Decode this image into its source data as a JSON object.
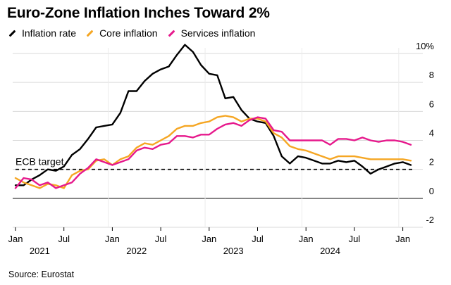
{
  "chart_data": {
    "type": "line",
    "title": "Euro-Zone Inflation Inches Toward 2%",
    "source": "Source: Eurostat",
    "annotation": "ECB target",
    "reference_line": {
      "value": 2,
      "label": "ECB target",
      "style": "dashed"
    },
    "ylim": [
      -2,
      10
    ],
    "yticks": [
      {
        "value": -2,
        "label": "-2"
      },
      {
        "value": 0,
        "label": "0"
      },
      {
        "value": 2,
        "label": "2"
      },
      {
        "value": 4,
        "label": "4"
      },
      {
        "value": 6,
        "label": "6"
      },
      {
        "value": 8,
        "label": "8"
      },
      {
        "value": 10,
        "label": "10%"
      }
    ],
    "xticks": [
      {
        "index": 0,
        "label": "Jan"
      },
      {
        "index": 6,
        "label": "Jul"
      },
      {
        "index": 12,
        "label": "Jan"
      },
      {
        "index": 18,
        "label": "Jul"
      },
      {
        "index": 24,
        "label": "Jan"
      },
      {
        "index": 30,
        "label": "Jul"
      },
      {
        "index": 36,
        "label": "Jan"
      },
      {
        "index": 42,
        "label": "Jul"
      },
      {
        "index": 48,
        "label": "Jan"
      }
    ],
    "year_labels": [
      {
        "center": 3,
        "label": "2021"
      },
      {
        "center": 15,
        "label": "2022"
      },
      {
        "center": 27,
        "label": "2023"
      },
      {
        "center": 39,
        "label": "2024"
      }
    ],
    "year_separators": [
      12,
      24,
      36,
      48
    ],
    "months": [
      "2021-01",
      "2021-02",
      "2021-03",
      "2021-04",
      "2021-05",
      "2021-06",
      "2021-07",
      "2021-08",
      "2021-09",
      "2021-10",
      "2021-11",
      "2021-12",
      "2022-01",
      "2022-02",
      "2022-03",
      "2022-04",
      "2022-05",
      "2022-06",
      "2022-07",
      "2022-08",
      "2022-09",
      "2022-10",
      "2022-11",
      "2022-12",
      "2023-01",
      "2023-02",
      "2023-03",
      "2023-04",
      "2023-05",
      "2023-06",
      "2023-07",
      "2023-08",
      "2023-09",
      "2023-10",
      "2023-11",
      "2023-12",
      "2024-01",
      "2024-02",
      "2024-03",
      "2024-04",
      "2024-05",
      "2024-06",
      "2024-07",
      "2024-08",
      "2024-09",
      "2024-10",
      "2024-11",
      "2024-12",
      "2025-01",
      "2025-02"
    ],
    "series": [
      {
        "name": "Inflation rate",
        "color": "#000000",
        "values": [
          0.9,
          0.9,
          1.3,
          1.6,
          2.0,
          1.9,
          2.2,
          3.0,
          3.4,
          4.1,
          4.9,
          5.0,
          5.1,
          5.9,
          7.4,
          7.4,
          8.1,
          8.6,
          8.9,
          9.1,
          9.9,
          10.6,
          10.1,
          9.2,
          8.6,
          8.5,
          6.9,
          7.0,
          6.1,
          5.5,
          5.3,
          5.2,
          4.3,
          2.9,
          2.4,
          2.9,
          2.8,
          2.6,
          2.4,
          2.4,
          2.6,
          2.5,
          2.6,
          2.2,
          1.7,
          2.0,
          2.2,
          2.4,
          2.5,
          2.3
        ]
      },
      {
        "name": "Core inflation",
        "color": "#f5a623",
        "values": [
          1.4,
          1.1,
          0.9,
          0.7,
          1.0,
          0.9,
          0.7,
          1.6,
          1.9,
          2.0,
          2.6,
          2.7,
          2.3,
          2.7,
          2.9,
          3.5,
          3.8,
          3.7,
          4.0,
          4.3,
          4.8,
          5.0,
          5.0,
          5.2,
          5.3,
          5.6,
          5.7,
          5.6,
          5.3,
          5.5,
          5.5,
          5.3,
          4.5,
          4.2,
          3.6,
          3.4,
          3.3,
          3.1,
          2.9,
          2.7,
          2.9,
          2.9,
          2.9,
          2.8,
          2.7,
          2.7,
          2.7,
          2.7,
          2.7,
          2.6
        ]
      },
      {
        "name": "Services inflation",
        "color": "#e6198c",
        "values": [
          0.7,
          1.4,
          1.3,
          0.9,
          1.1,
          0.7,
          0.9,
          1.1,
          1.7,
          2.1,
          2.7,
          2.5,
          2.3,
          2.5,
          2.7,
          3.3,
          3.5,
          3.4,
          3.7,
          3.8,
          4.3,
          4.3,
          4.2,
          4.4,
          4.4,
          4.8,
          5.1,
          5.2,
          5.0,
          5.4,
          5.6,
          5.5,
          4.7,
          4.6,
          4.0,
          4.0,
          4.0,
          4.0,
          4.0,
          3.7,
          4.1,
          4.1,
          4.0,
          4.2,
          4.0,
          3.9,
          4.0,
          4.0,
          3.9,
          3.7
        ]
      }
    ]
  }
}
